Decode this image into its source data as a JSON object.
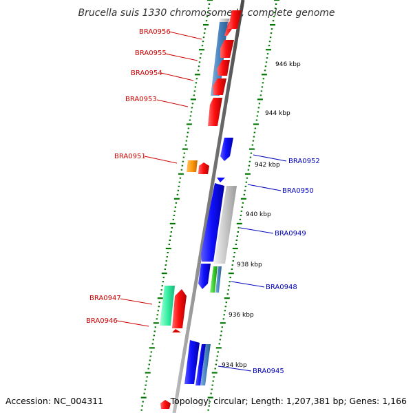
{
  "title": "Brucella suis 1330 chromosome II, complete genome",
  "footer": {
    "accession": "Accession: NC_004311",
    "topology": "Topology: circular; Length: 1,207,381 bp; Genes: 1,166"
  },
  "colors": {
    "left_label": "#cc0000",
    "right_label": "#0000bb",
    "backbone": "#808080",
    "tick": "#007700"
  },
  "kbp_ticks": [
    "946 kbp",
    "944 kbp",
    "942 kbp",
    "940 kbp",
    "938 kbp",
    "936 kbp",
    "934 kbp"
  ],
  "gene_labels_left": [
    "BRA0956",
    "BRA0955",
    "BRA0954",
    "BRA0953",
    "BRA0951",
    "BRA0947",
    "BRA0946"
  ],
  "gene_labels_right": [
    "BRA0952",
    "BRA0950",
    "BRA0949",
    "BRA0948",
    "BRA0945"
  ]
}
